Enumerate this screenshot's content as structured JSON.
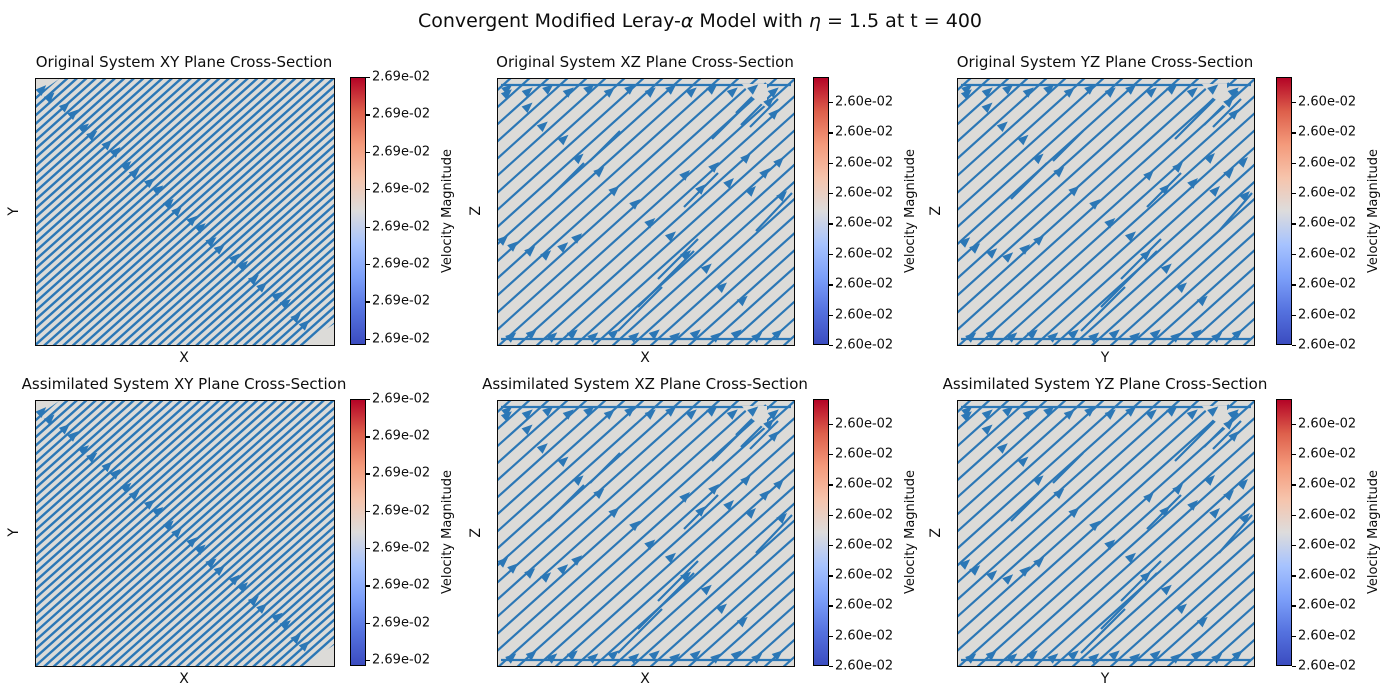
{
  "figure": {
    "suptitle_parts": {
      "pre": "Convergent Modified Leray-",
      "alpha": "α",
      "mid": " Model with ",
      "eta": "η",
      "post": " = 1.5 at t = 400"
    }
  },
  "colors": {
    "streamline": "#2b77b6",
    "panel_bg": "#dcdbd8",
    "panel_border": "#0a0a0a",
    "colormap_stops_top_to_bottom": [
      "#b40426",
      "#dd5f4b",
      "#f49a7b",
      "#f6c4ac",
      "#dddcdc",
      "#a7c3fe",
      "#7c9ff9",
      "#5572df",
      "#3b4cc0"
    ]
  },
  "chart_data": {
    "type": "streamplot-grid",
    "suptitle": "Convergent Modified Leray-α Model with η = 1.5 at t = 400",
    "rows": 2,
    "cols": 3,
    "colormap": "coolwarm",
    "flow_description": "Uniform diagonal flow toward the upper-right (+1,+1) direction in every cross-section; nearly constant velocity magnitude field (light gray coolwarm midtone background).",
    "legend_position": "colorbar right of each subplot",
    "grid": false,
    "velocity_magnitude_approx": {
      "xy_plane": 0.0269,
      "xz_plane": 0.026,
      "yz_plane": 0.026
    },
    "subplots": [
      {
        "title": "Original System XY Plane Cross-Section",
        "xlabel": "X",
        "ylabel": "Y",
        "density": "dense",
        "colorbar_label": "Velocity Magnitude",
        "colorbar_ticks": [
          "2.69e-02",
          "2.69e-02",
          "2.69e-02",
          "2.69e-02",
          "2.69e-02",
          "2.69e-02",
          "2.69e-02",
          "2.69e-02"
        ]
      },
      {
        "title": "Original System XZ Plane Cross-Section",
        "xlabel": "X",
        "ylabel": "Z",
        "density": "sparse",
        "colorbar_label": "Velocity Magnitude",
        "colorbar_ticks": [
          "2.60e-02",
          "2.60e-02",
          "2.60e-02",
          "2.60e-02",
          "2.60e-02",
          "2.60e-02",
          "2.60e-02",
          "2.60e-02",
          "2.60e-02"
        ]
      },
      {
        "title": "Original System YZ Plane Cross-Section",
        "xlabel": "Y",
        "ylabel": "Z",
        "density": "sparse",
        "colorbar_label": "Velocity Magnitude",
        "colorbar_ticks": [
          "2.60e-02",
          "2.60e-02",
          "2.60e-02",
          "2.60e-02",
          "2.60e-02",
          "2.60e-02",
          "2.60e-02",
          "2.60e-02",
          "2.60e-02"
        ]
      },
      {
        "title": "Assimilated System XY Plane Cross-Section",
        "xlabel": "X",
        "ylabel": "Y",
        "density": "dense",
        "colorbar_label": "Velocity Magnitude",
        "colorbar_ticks": [
          "2.69e-02",
          "2.69e-02",
          "2.69e-02",
          "2.69e-02",
          "2.69e-02",
          "2.69e-02",
          "2.69e-02",
          "2.69e-02"
        ]
      },
      {
        "title": "Assimilated System XZ Plane Cross-Section",
        "xlabel": "X",
        "ylabel": "Z",
        "density": "sparse",
        "colorbar_label": "Velocity Magnitude",
        "colorbar_ticks": [
          "2.60e-02",
          "2.60e-02",
          "2.60e-02",
          "2.60e-02",
          "2.60e-02",
          "2.60e-02",
          "2.60e-02",
          "2.60e-02",
          "2.60e-02"
        ]
      },
      {
        "title": "Assimilated System YZ Plane Cross-Section",
        "xlabel": "Y",
        "ylabel": "Z",
        "density": "sparse",
        "colorbar_label": "Velocity Magnitude",
        "colorbar_ticks": [
          "2.60e-02",
          "2.60e-02",
          "2.60e-02",
          "2.60e-02",
          "2.60e-02",
          "2.60e-02",
          "2.60e-02",
          "2.60e-02",
          "2.60e-02"
        ]
      }
    ]
  }
}
